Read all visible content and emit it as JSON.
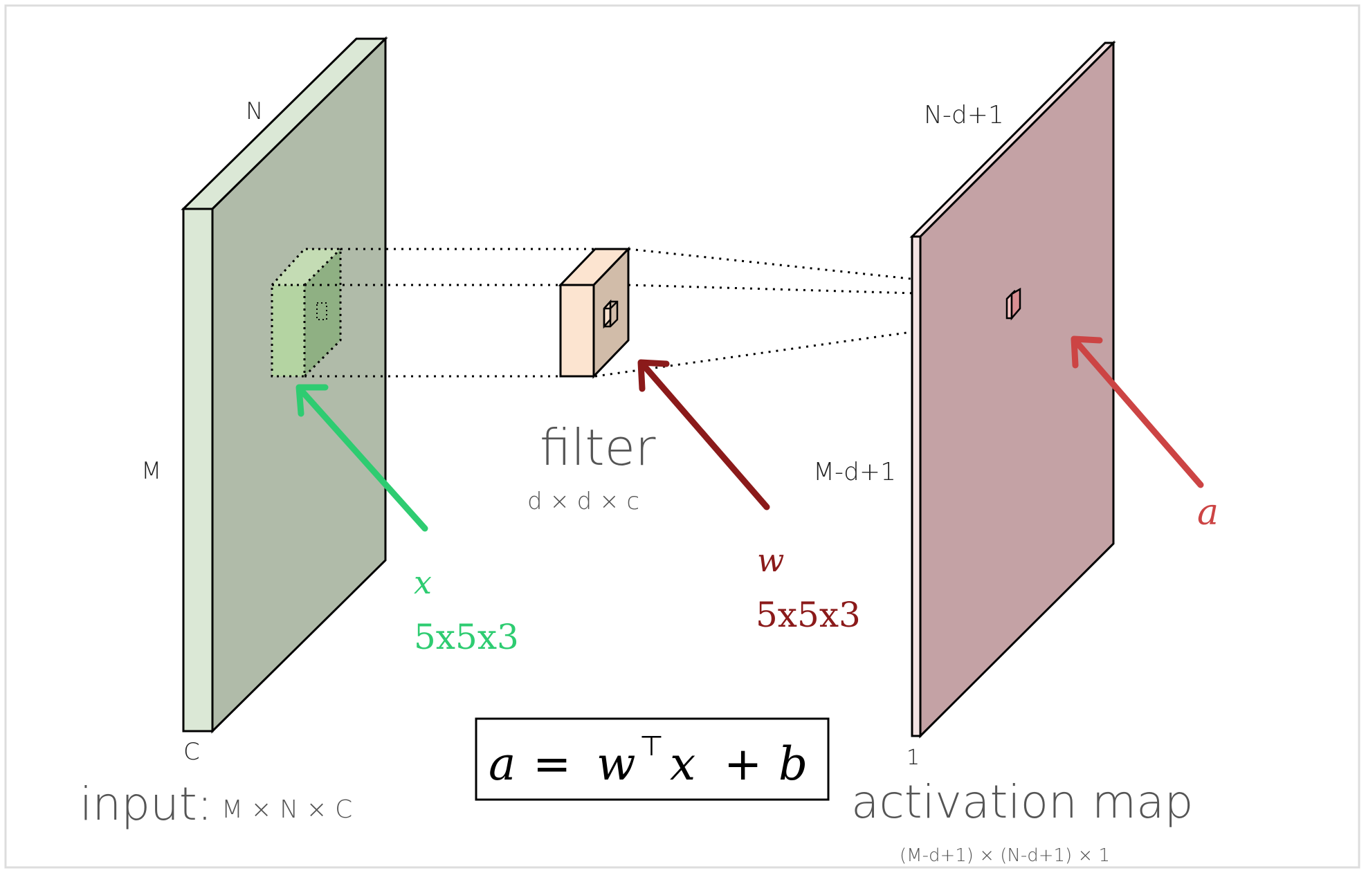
{
  "input": {
    "title": "input:",
    "dims": "M × N × C",
    "label_width": "N",
    "label_height": "M",
    "label_depth": "C"
  },
  "filter": {
    "title": "filter",
    "dims": "d × d × c"
  },
  "activation": {
    "title": "activation map",
    "dims": "(M-d+1) × (N-d+1) × 1",
    "label_width": "N-d+1",
    "label_height": "M-d+1",
    "label_depth": "1"
  },
  "annotations": {
    "x_symbol": "x",
    "x_size": "5x5x3",
    "w_symbol": "w",
    "w_size": "5x5x3",
    "a_symbol": "a",
    "x_color": "#2ecc71",
    "w_color": "#8b1a1a",
    "a_color": "#cc4444"
  },
  "formula": {
    "lhs": "a",
    "eq": "=",
    "w": "w",
    "sup": "⊤",
    "x": "x",
    "plus": "+",
    "b": "b"
  },
  "colors": {
    "input_face": "#b0bba9",
    "input_edge": "#dbe8d6",
    "filter_front": "#fce4d0",
    "filter_side": "#d1bca9",
    "activation_face": "#c4a2a5",
    "activation_edge": "#f4e4e4"
  }
}
